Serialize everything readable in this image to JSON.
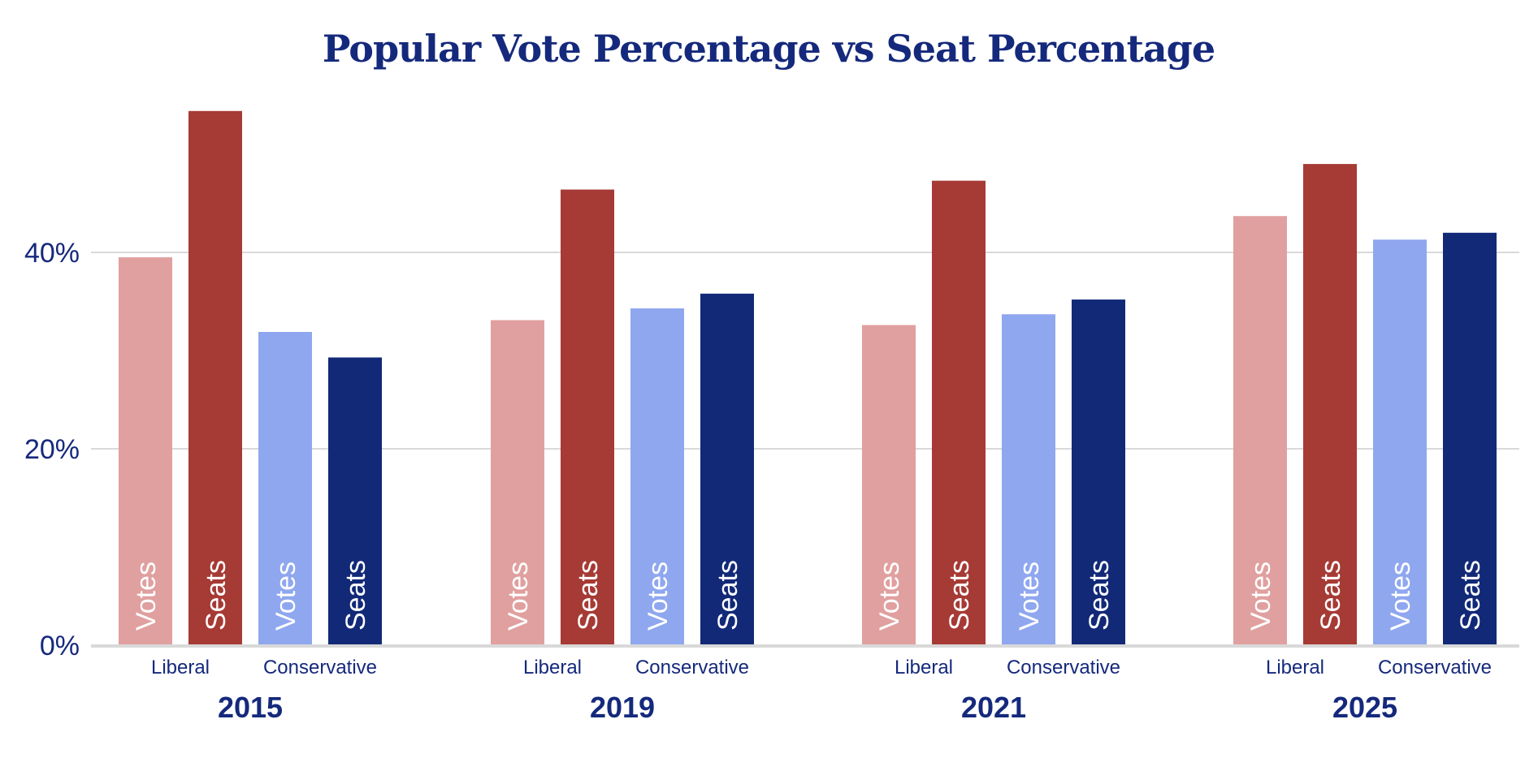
{
  "chart_data": {
    "type": "bar",
    "title": "Popular Vote Percentage vs Seat Percentage",
    "xlabel": "",
    "ylabel": "",
    "ylim": [
      0,
      55
    ],
    "y_ticks": [
      0,
      20,
      40
    ],
    "y_tick_labels": [
      "0%",
      "20%",
      "40%"
    ],
    "grid": true,
    "groups": [
      "2015",
      "2019",
      "2021",
      "2025"
    ],
    "parties": [
      "Liberal",
      "Conservative"
    ],
    "bar_labels": [
      "Votes",
      "Seats"
    ],
    "series": [
      {
        "party": "Liberal",
        "measure": "Votes",
        "color": "#e0a09f",
        "values": [
          39.5,
          33.1,
          32.6,
          43.7
        ]
      },
      {
        "party": "Liberal",
        "measure": "Seats",
        "color": "#a63a35",
        "values": [
          54.4,
          46.4,
          47.3,
          49.0
        ]
      },
      {
        "party": "Conservative",
        "measure": "Votes",
        "color": "#8fa7ef",
        "values": [
          31.9,
          34.3,
          33.7,
          41.3
        ]
      },
      {
        "party": "Conservative",
        "measure": "Seats",
        "color": "#122977",
        "values": [
          29.3,
          35.8,
          35.2,
          42.0
        ]
      }
    ]
  }
}
